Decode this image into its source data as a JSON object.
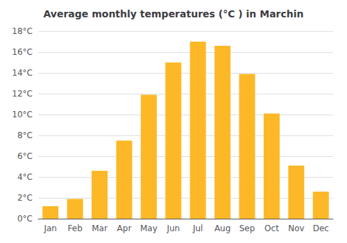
{
  "chart_data": {
    "type": "bar",
    "title": "Average monthly temperatures (°C ) in Marchin",
    "categories": [
      "Jan",
      "Feb",
      "Mar",
      "Apr",
      "May",
      "Jun",
      "Jul",
      "Aug",
      "Sep",
      "Oct",
      "Nov",
      "Dec"
    ],
    "values": [
      1.2,
      1.9,
      4.6,
      7.5,
      11.9,
      15.0,
      17.0,
      16.6,
      13.9,
      10.1,
      5.1,
      2.6
    ],
    "color": "#FDB827",
    "ylim": [
      0,
      18
    ],
    "yticks": [
      {
        "value": 0,
        "label": "0°C"
      },
      {
        "value": 2,
        "label": "2°C"
      },
      {
        "value": 4,
        "label": "4°C"
      },
      {
        "value": 6,
        "label": "6°C"
      },
      {
        "value": 8,
        "label": "8°C"
      },
      {
        "value": 10,
        "label": "10°C"
      },
      {
        "value": 12,
        "label": "12°C"
      },
      {
        "value": 14,
        "label": "14°C"
      },
      {
        "value": 16,
        "label": "16°C"
      },
      {
        "value": 18,
        "label": "18°C"
      }
    ],
    "grid": true
  }
}
